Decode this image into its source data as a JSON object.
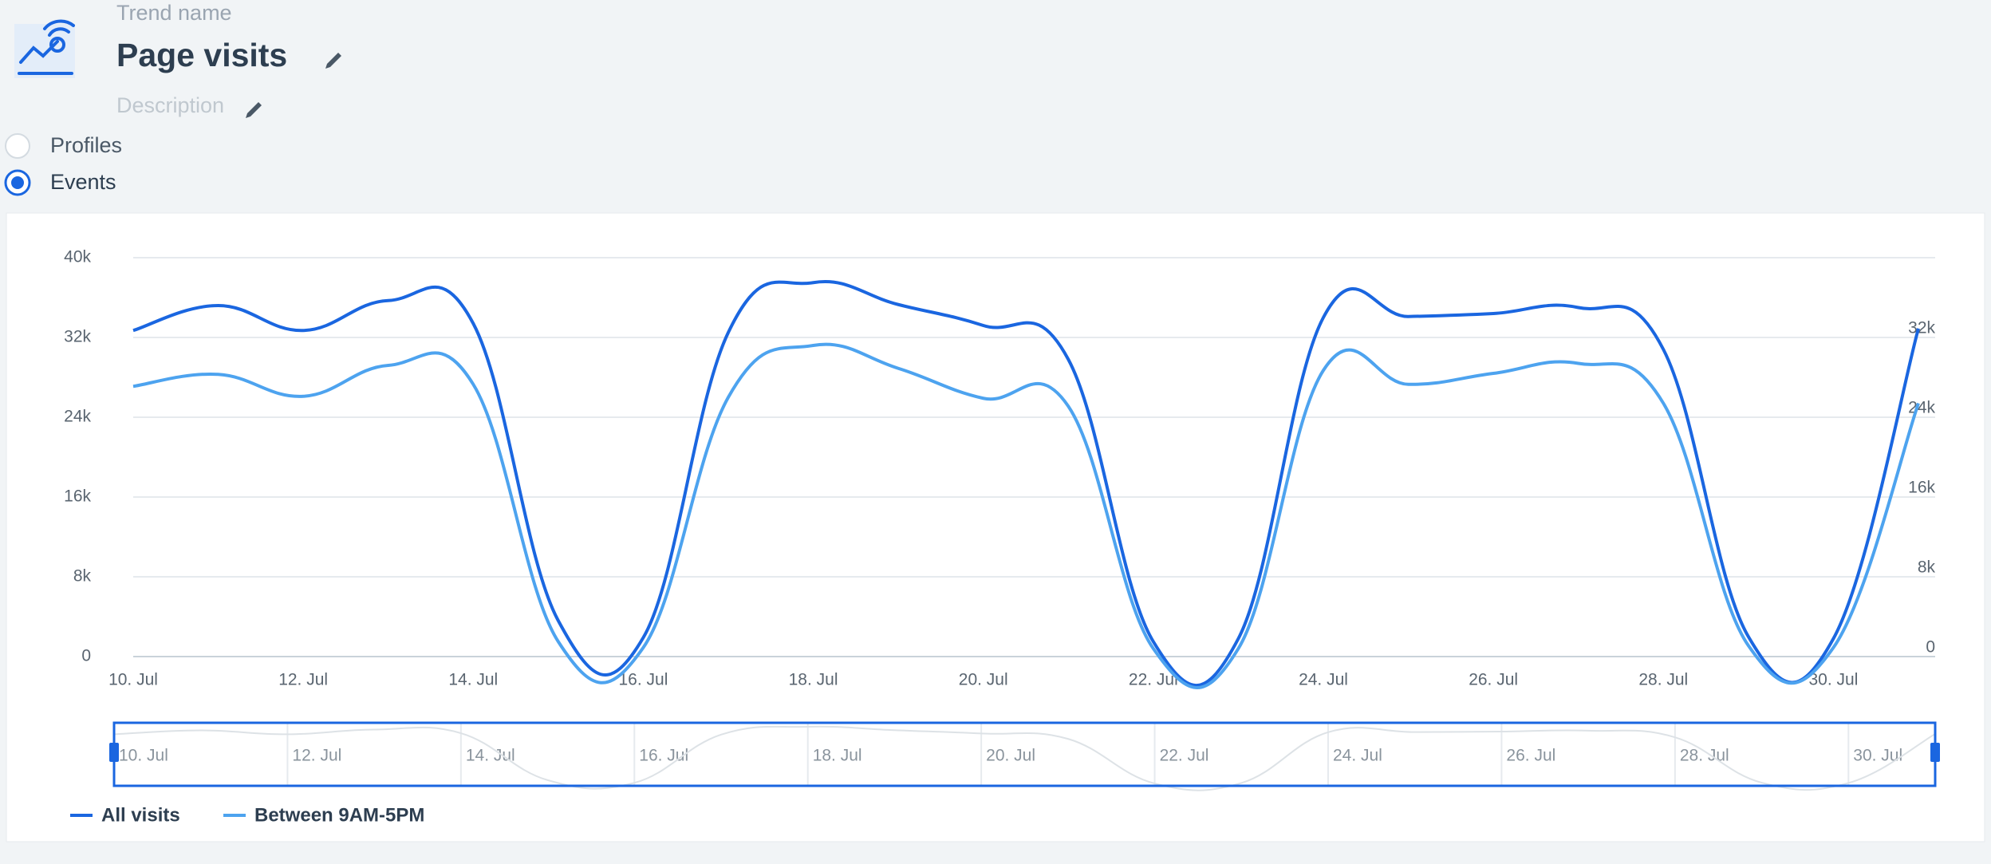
{
  "header": {
    "label": "Trend name",
    "title": "Page visits",
    "description": "Description"
  },
  "options": [
    "Profiles",
    "Events"
  ],
  "chart_data": {
    "type": "line",
    "categories": [
      "10. Jul",
      null,
      "12. Jul",
      null,
      "14. Jul",
      null,
      "16. Jul",
      null,
      "18. Jul",
      null,
      "20. Jul",
      null,
      "22. Jul",
      null,
      "24. Jul",
      null,
      "26. Jul",
      null,
      "28. Jul",
      null,
      "30. Jul",
      null
    ],
    "series": [
      {
        "name": "All visits",
        "color": "#1a66e0",
        "values": [
          32700,
          35200,
          32700,
          35700,
          33400,
          3600,
          1900,
          32500,
          37500,
          35300,
          33200,
          29800,
          1500,
          1800,
          34000,
          34100,
          34400,
          35000,
          30800,
          2000,
          1800,
          32900
        ]
      },
      {
        "name": "Between 9AM-5PM",
        "color": "#4da3ef",
        "values": [
          27100,
          28300,
          26100,
          29200,
          27300,
          1500,
          900,
          26000,
          31200,
          28900,
          25900,
          25100,
          800,
          800,
          28700,
          27300,
          28400,
          29400,
          25400,
          1100,
          900,
          25400
        ]
      }
    ],
    "ylim": [
      0,
      40000
    ],
    "yticks": [
      0,
      {
        "value": 8000,
        "label": "8k"
      },
      {
        "value": 16000,
        "label": "16k"
      },
      {
        "value": 24000,
        "label": "24k"
      },
      {
        "value": 32000,
        "label": "32k"
      },
      {
        "value": 40000,
        "label": "40k"
      }
    ],
    "y2lim": [
      0,
      40000
    ],
    "y2ticks": [
      0,
      {
        "value": 8000,
        "label": "8k"
      },
      {
        "value": 16000,
        "label": "16k"
      },
      {
        "value": 24000,
        "label": "24k"
      },
      {
        "value": 32000,
        "label": "32k"
      }
    ],
    "grid": true
  }
}
